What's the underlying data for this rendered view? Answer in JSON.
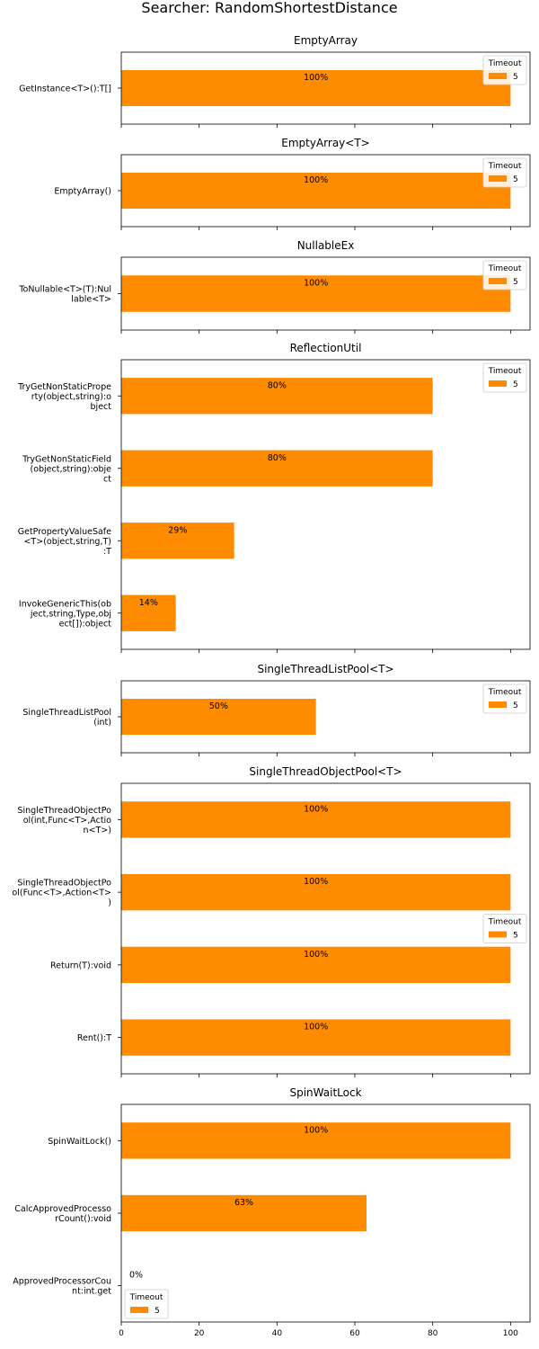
{
  "chart_data": {
    "type": "bar",
    "orientation": "horizontal",
    "title": "Searcher: RandomShortestDistance",
    "xlim": [
      0,
      105
    ],
    "x_ticks": [
      0,
      20,
      40,
      60,
      80,
      100
    ],
    "bar_color": "#ff8c00",
    "legend_title": "Timeout",
    "legend_label": "5",
    "panels": [
      {
        "title": "EmptyArray",
        "legend_position": "top-right",
        "categories": [
          "GetInstance<T>():T[]"
        ],
        "values": [
          100
        ],
        "labels": [
          "100%"
        ]
      },
      {
        "title": "EmptyArray<T>",
        "legend_position": "top-right",
        "categories": [
          "EmptyArray()"
        ],
        "values": [
          100
        ],
        "labels": [
          "100%"
        ]
      },
      {
        "title": "NullableEx",
        "legend_position": "top-right",
        "categories": [
          "ToNullable<T>(T):Nullable<T>"
        ],
        "values": [
          100
        ],
        "labels": [
          "100%"
        ]
      },
      {
        "title": "ReflectionUtil",
        "legend_position": "top-right",
        "categories": [
          "TryGetNonStaticProperty(object,string):object",
          "TryGetNonStaticField(object,string):object",
          "GetPropertyValueSafe<T>(object,string,T):T",
          "InvokeGenericThis(object,string,Type,object[]):object"
        ],
        "values": [
          80,
          80,
          29,
          14
        ],
        "labels": [
          "80%",
          "80%",
          "29%",
          "14%"
        ]
      },
      {
        "title": "SingleThreadListPool<T>",
        "legend_position": "top-right",
        "categories": [
          "SingleThreadListPool(int)"
        ],
        "values": [
          50
        ],
        "labels": [
          "50%"
        ]
      },
      {
        "title": "SingleThreadObjectPool<T>",
        "legend_position": "center-right",
        "categories": [
          "SingleThreadObjectPool(int,Func<T>,Action<T>)",
          "SingleThreadObjectPool(Func<T>,Action<T>)",
          "Return(T):void",
          "Rent():T"
        ],
        "values": [
          100,
          100,
          100,
          100
        ],
        "labels": [
          "100%",
          "100%",
          "100%",
          "100%"
        ]
      },
      {
        "title": "SpinWaitLock",
        "legend_position": "bottom-left",
        "categories": [
          "SpinWaitLock()",
          "CalcApprovedProcessorCount():void",
          "ApprovedProcessorCount:int.get"
        ],
        "values": [
          100,
          63,
          0
        ],
        "labels": [
          "100%",
          "63%",
          "0%"
        ]
      }
    ]
  }
}
